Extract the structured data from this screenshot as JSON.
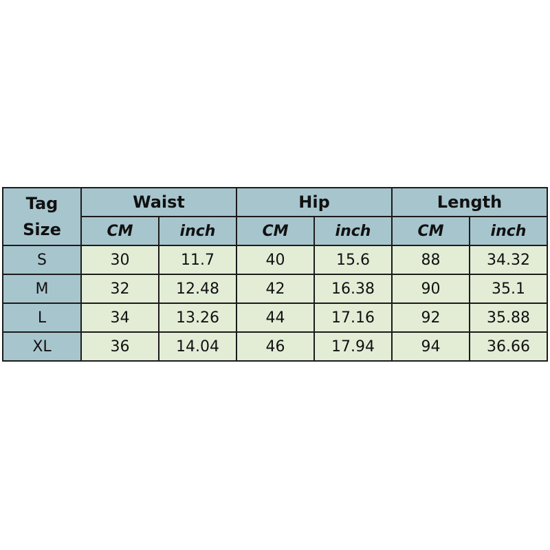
{
  "header": {
    "tag_line1": "Tag",
    "tag_line2": "Size",
    "groups": [
      "Waist",
      "Hip",
      "Length"
    ],
    "units": [
      "CM",
      "inch",
      "CM",
      "inch",
      "CM",
      "inch"
    ]
  },
  "rows": [
    {
      "size": "S",
      "values": [
        "30",
        "11.7",
        "40",
        "15.6",
        "88",
        "34.32"
      ]
    },
    {
      "size": "M",
      "values": [
        "32",
        "12.48",
        "42",
        "16.38",
        "90",
        "35.1"
      ]
    },
    {
      "size": "L",
      "values": [
        "34",
        "13.26",
        "44",
        "17.16",
        "92",
        "35.88"
      ]
    },
    {
      "size": "XL",
      "values": [
        "36",
        "14.04",
        "46",
        "17.94",
        "94",
        "36.66"
      ]
    }
  ],
  "colors": {
    "header": "#a7c5cd",
    "cell": "#e3edd6",
    "border": "#1a1a1a"
  }
}
